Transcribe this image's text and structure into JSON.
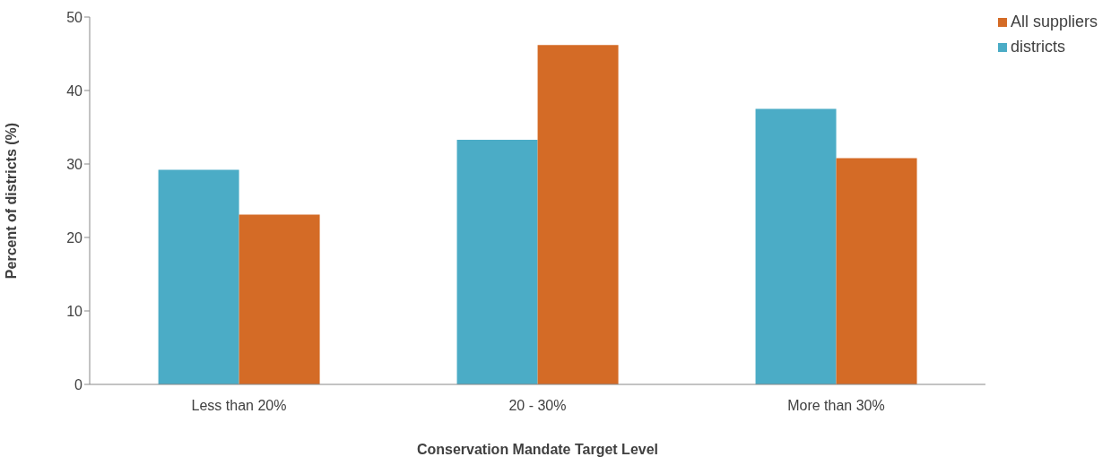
{
  "chart_data": {
    "type": "bar",
    "xlabel": "Conservation Mandate Target Level",
    "ylabel": "Percent of districts (%)",
    "categories": [
      "Less than 20%",
      "20 - 30%",
      "More than 30%"
    ],
    "series": [
      {
        "name": "districts",
        "color": "#4bacc6",
        "values": [
          29.2,
          33.3,
          37.5
        ]
      },
      {
        "name": "All suppliers",
        "color": "#d46b26",
        "values": [
          23.1,
          46.2,
          30.8
        ]
      }
    ],
    "ylim": [
      0,
      50
    ],
    "yticks": [
      0,
      10,
      20,
      30,
      40,
      50
    ],
    "grid": false,
    "legend": "top right"
  }
}
